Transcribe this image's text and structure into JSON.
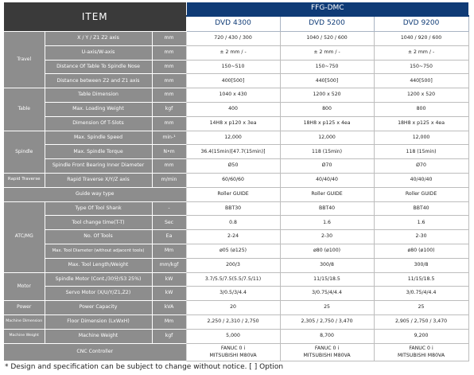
{
  "header": {
    "item": "ITEM",
    "series": "FFG-DMC",
    "models": [
      "DVD 4300",
      "DVD 5200",
      "DVD 9200"
    ]
  },
  "rows": [
    {
      "param": "X / Y / Z1 Z2 axis",
      "unit": "mm",
      "values": [
        "720 / 430 / 300",
        "1040 / 520 / 600",
        "1040 / 920 / 600"
      ]
    },
    {
      "param": "U-axis/W-axis",
      "unit": "mm",
      "values": [
        "± 2 mm / -",
        "± 2 mm / -",
        "± 2 mm / -"
      ]
    },
    {
      "param": "Distance Of Table To Spindle Nose",
      "unit": "mm",
      "values": [
        "150~510",
        "150~750",
        "150~750"
      ]
    },
    {
      "param": "Distance between Z2 and Z1 axis",
      "unit": "mm",
      "values": [
        "400[500]",
        "440[500]",
        "440[500]"
      ]
    },
    {
      "param": "Table Dimension",
      "unit": "mm",
      "values": [
        "1040 x 430",
        "1200 x 520",
        "1200 x 520"
      ]
    },
    {
      "param": "Max. Loading Weight",
      "unit": "kgf",
      "values": [
        "400",
        "800",
        "800"
      ]
    },
    {
      "param": "Dimension Of T-Slots",
      "unit": "mm",
      "values": [
        "14H8 x p120 x 3ea",
        "18H8 x p125 x 4ea",
        "18H8 x p125 x 4ea"
      ]
    },
    {
      "param": "Max. Spindle Speed",
      "unit": "min-¹",
      "values": [
        "12,000",
        "12,000",
        "12,000"
      ]
    },
    {
      "param": "Max. Spindle Torque",
      "unit": "N•m",
      "values": [
        "36.4(15min)[47.7(15min)]",
        "118 (15min)",
        "118 (15min)"
      ]
    },
    {
      "param": "Spindle Front Bearing Inner Diameter",
      "unit": "mm",
      "values": [
        "Ø50",
        "Ø70",
        "Ø70"
      ]
    },
    {
      "param": "Rapid Traverse X/Y/Z axis",
      "unit": "m/min",
      "values": [
        "60/60/60",
        "40/40/40",
        "40/40/40"
      ]
    },
    {
      "param": "Guide way type",
      "values": [
        "Roller GUIDE",
        "Roller GUIDE",
        "Roller GUIDE"
      ]
    },
    {
      "param": "Type Of Tool Shank",
      "unit": "-",
      "values": [
        "BBT30",
        "BBT40",
        "BBT40"
      ]
    },
    {
      "param": "Tool change time(T-T)",
      "unit": "Sec",
      "values": [
        "0.8",
        "1.6",
        "1.6"
      ]
    },
    {
      "param": "No. Of Tools",
      "unit": "Ea",
      "values": [
        "2-24",
        "2-30",
        "2-30"
      ]
    },
    {
      "param": "Max. Tool Diameter (without adjacent tools)",
      "unit": "Mm",
      "values": [
        "ø05 (ø125)",
        "ø80 (ø100)",
        "ø80 (ø100)"
      ]
    },
    {
      "param": "Max. Tool Length/Weight",
      "unit": "mm/kgf",
      "values": [
        "200/3",
        "300/8",
        "300/8"
      ]
    },
    {
      "param": "Spindle Motor (Cont./30分/S3 25%)",
      "unit": "kW",
      "values": [
        "3.7/5.5/7.5(5.5/7.5/11)",
        "11/15/18.5",
        "11/15/18.5"
      ]
    },
    {
      "param": "Servo Motor (X/U/Y/Z1,Z2)",
      "unit": "kW",
      "values": [
        "3/0.5/3/4.4",
        "3/0.75/4/4.4",
        "3/0.75/4/4.4"
      ]
    },
    {
      "param": "Power Capacity",
      "unit": "kVA",
      "values": [
        "20",
        "25",
        "25"
      ]
    },
    {
      "param": "Floor Dimension (LxWxH)",
      "unit": "Mm",
      "values": [
        "2,250 / 2,310 / 2,750",
        "2,305 / 2,750 / 3,470",
        "2,905 / 2,750 / 3,470"
      ]
    },
    {
      "param": "Machine Weight",
      "unit": "kgf",
      "values": [
        "5,000",
        "8,700",
        "9,200"
      ]
    },
    {
      "param": "CNC Controller",
      "values": [
        {
          "line1": "FANUC 0 i",
          "line2": "MITSUBISHI M80VA"
        },
        {
          "line1": "FANUC 0 i",
          "line2": "MITSUBISHI M80VA"
        },
        {
          "line1": "FANUC 0 i",
          "line2": "MITSUBISHI M80VA"
        }
      ]
    }
  ],
  "categories": {
    "travel": "Travel",
    "table": "Table",
    "spindle": "Spindle",
    "rapid": "Rapid Traverse",
    "atc": "ATC/MG",
    "motor": "Motor",
    "power": "Power",
    "machine_dimension": "Machine Dimension",
    "machine_weight": "Machine Weight"
  },
  "footnote": "* Design and specification can be subject to change without notice.   [ ] Option"
}
